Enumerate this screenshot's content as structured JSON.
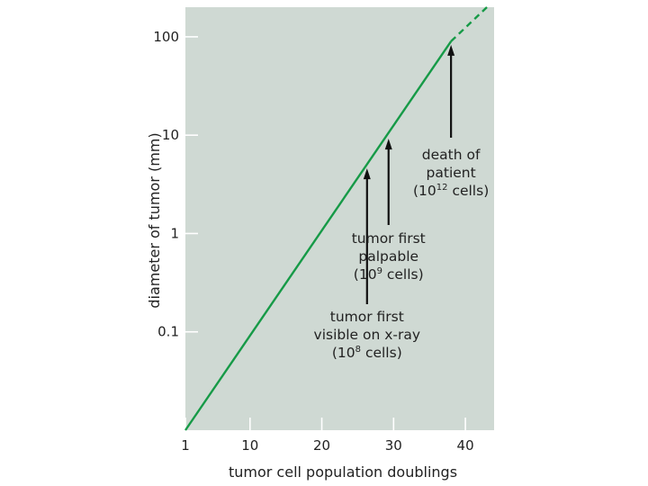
{
  "chart_data": {
    "type": "line",
    "title": "",
    "xlabel": "tumor cell population doublings",
    "ylabel": "diameter of tumor (mm)",
    "x_ticks": [
      "1",
      "10",
      "20",
      "30",
      "40"
    ],
    "x_tick_values": [
      1,
      10,
      20,
      30,
      40
    ],
    "y_ticks": [
      "0.1",
      "1",
      "10",
      "100"
    ],
    "y_tick_values": [
      0.1,
      1,
      10,
      100
    ],
    "y_scale": "log",
    "xlim": [
      1,
      44
    ],
    "ylim": [
      0.01,
      200
    ],
    "grid": false,
    "colors": {
      "plot_background": "#cfd9d3",
      "line": "#169a47",
      "arrow": "#111111"
    },
    "series": [
      {
        "style": "solid",
        "points": [
          [
            1,
            0.01
          ],
          [
            38,
            90
          ]
        ]
      },
      {
        "style": "dashed",
        "points": [
          [
            38,
            90
          ],
          [
            43,
            200
          ]
        ]
      }
    ],
    "annotations": [
      {
        "x": 26.3,
        "y": 5,
        "lines": [
          {
            "text": "tumor first"
          },
          {
            "text": "visible on x-ray"
          },
          {
            "text": "(10",
            "sup": "8",
            "after": " cells)"
          }
        ]
      },
      {
        "x": 29.3,
        "y": 10,
        "lines": [
          {
            "text": "tumor first"
          },
          {
            "text": "palpable"
          },
          {
            "text": "(10",
            "sup": "9",
            "after": " cells)"
          }
        ]
      },
      {
        "x": 38,
        "y": 90,
        "lines": [
          {
            "text": "death of"
          },
          {
            "text": "patient"
          },
          {
            "text": "(10",
            "sup": "12",
            "after": " cells)"
          }
        ]
      }
    ]
  }
}
